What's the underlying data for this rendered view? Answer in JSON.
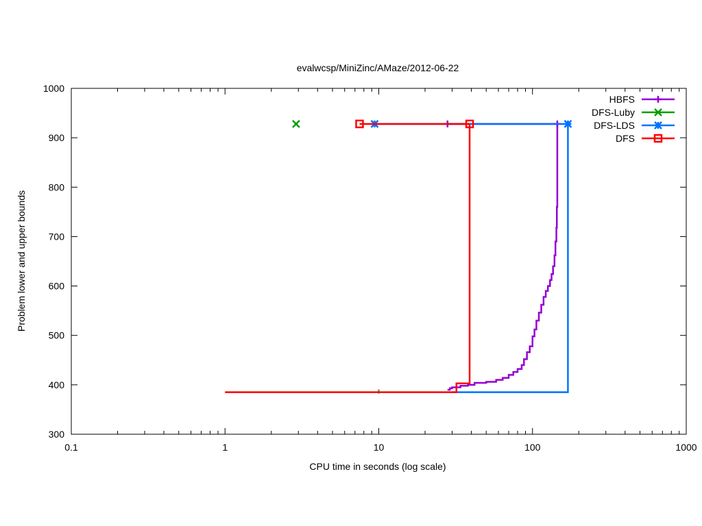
{
  "chart_data": {
    "type": "line",
    "title": "evalwcsp/MiniZinc/AMaze/2012-06-22",
    "xlabel": "CPU time in seconds (log scale)",
    "ylabel": "Problem lower and upper bounds",
    "xscale": "log",
    "xlim": [
      0.1,
      1000
    ],
    "ylim": [
      300,
      1000
    ],
    "xticks": [
      0.1,
      1,
      10,
      100,
      1000
    ],
    "xtick_labels": [
      "0.1",
      "1",
      "10",
      "100",
      "1000"
    ],
    "yticks": [
      300,
      400,
      500,
      600,
      700,
      800,
      900,
      1000
    ],
    "ytick_labels": [
      "300",
      "400",
      "500",
      "600",
      "700",
      "800",
      "900",
      "1000"
    ],
    "grid": false,
    "legend_position": "top-right",
    "series": [
      {
        "name": "HBFS",
        "color": "#9400d3",
        "marker": "plus",
        "upper": [
          [
            28,
            928
          ],
          [
            145,
            928
          ]
        ],
        "lower": [
          [
            28,
            390
          ],
          [
            29,
            393
          ],
          [
            30,
            395
          ],
          [
            34,
            398
          ],
          [
            38,
            400
          ],
          [
            42,
            404
          ],
          [
            50,
            406
          ],
          [
            58,
            410
          ],
          [
            64,
            414
          ],
          [
            70,
            420
          ],
          [
            75,
            426
          ],
          [
            80,
            432
          ],
          [
            85,
            440
          ],
          [
            88,
            452
          ],
          [
            92,
            466
          ],
          [
            96,
            478
          ],
          [
            100,
            498
          ],
          [
            103,
            512
          ],
          [
            106,
            530
          ],
          [
            110,
            546
          ],
          [
            114,
            562
          ],
          [
            118,
            578
          ],
          [
            122,
            590
          ],
          [
            126,
            600
          ],
          [
            130,
            612
          ],
          [
            133,
            624
          ],
          [
            136,
            640
          ],
          [
            139,
            662
          ],
          [
            141,
            690
          ],
          [
            143,
            718
          ],
          [
            144,
            760
          ],
          [
            145,
            928
          ]
        ]
      },
      {
        "name": "DFS-Luby",
        "color": "#009e00",
        "marker": "x",
        "upper": [
          [
            2.9,
            928
          ]
        ],
        "lower": [
          [
            10,
            385
          ]
        ]
      },
      {
        "name": "DFS-LDS",
        "color": "#0072ff",
        "marker": "star",
        "upper": [
          [
            9.4,
            928
          ],
          [
            170,
            928
          ]
        ],
        "lower": [
          [
            30,
            385
          ],
          [
            170,
            385
          ],
          [
            170,
            928
          ]
        ]
      },
      {
        "name": "DFS",
        "color": "#ff0000",
        "marker": "square",
        "upper": [
          [
            7.5,
            928
          ],
          [
            39,
            928
          ]
        ],
        "lower": [
          [
            1,
            385
          ],
          [
            32,
            385
          ],
          [
            32,
            403
          ],
          [
            39,
            403
          ],
          [
            39,
            928
          ]
        ]
      }
    ]
  }
}
